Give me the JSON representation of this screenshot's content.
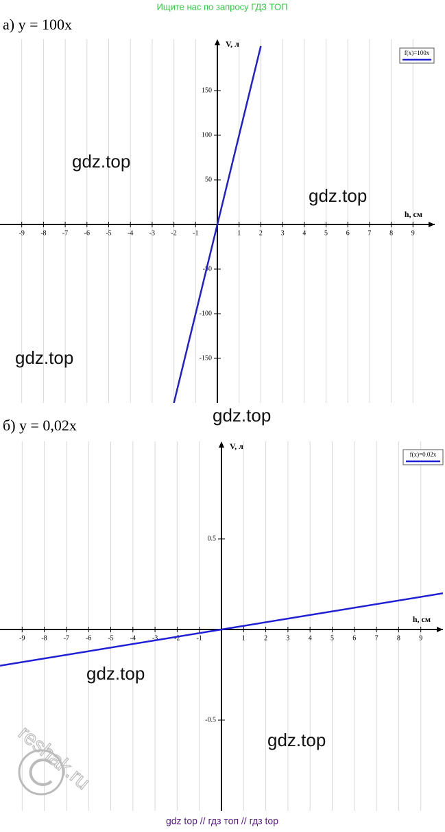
{
  "header": "Ищите нас по запросу ГДЗ ТОП",
  "footer": "gdz top  //  гдз топ  //  гдз top",
  "watermarks": [
    "gdz.top",
    "gdz.top",
    "gdz.top",
    "gdz.top",
    "gdz.top",
    "gdz.top",
    "reshak.ru"
  ],
  "chart_data": [
    {
      "type": "line",
      "title": "а) y = 100x",
      "x_label": "h, см",
      "y_label": "V, л",
      "x": [
        -2,
        0,
        2
      ],
      "series": [
        {
          "name": "f(x)=100x",
          "color": "#1f1fd6",
          "values": [
            -200,
            0,
            200
          ]
        }
      ],
      "xlim": [
        -10,
        10
      ],
      "ylim": [
        -200,
        200
      ],
      "xticks": [
        -9,
        -8,
        -7,
        -6,
        -5,
        -4,
        -3,
        -2,
        -1,
        1,
        2,
        3,
        4,
        5,
        6,
        7,
        8,
        9
      ],
      "yticks": [
        -150,
        -100,
        -50,
        50,
        100,
        150
      ],
      "grid": true,
      "legend": "top-right"
    },
    {
      "type": "line",
      "title": "б) y = 0,02x",
      "x_label": "h, см",
      "y_label": "V, л",
      "x": [
        -10,
        0,
        10
      ],
      "series": [
        {
          "name": "f(x)=0.02x",
          "color": "#1f1fd6",
          "values": [
            -0.2,
            0,
            0.2
          ]
        }
      ],
      "xlim": [
        -10,
        10
      ],
      "ylim": [
        -1,
        1
      ],
      "xticks": [
        -9,
        -8,
        -7,
        -6,
        -5,
        -4,
        -3,
        -2,
        -1,
        1,
        2,
        3,
        4,
        5,
        6,
        7,
        8,
        9
      ],
      "yticks": [
        -0.5,
        0.5
      ],
      "grid": true,
      "legend": "top-right"
    }
  ]
}
